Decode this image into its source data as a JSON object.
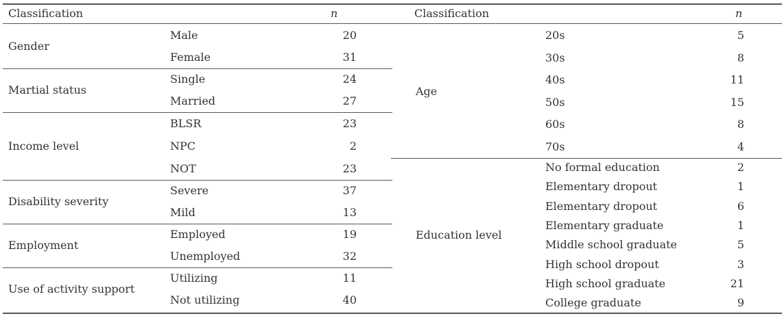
{
  "header": {
    "left_classification": "Classification",
    "left_n": "n",
    "right_classification": "Classification",
    "right_n": "n"
  },
  "left_groups": [
    {
      "label": "Gender",
      "rows": [
        {
          "label": "Male",
          "n": "20"
        },
        {
          "label": "Female",
          "n": "31"
        }
      ]
    },
    {
      "label": "Martial status",
      "rows": [
        {
          "label": "Single",
          "n": "24"
        },
        {
          "label": "Married",
          "n": "27"
        }
      ]
    },
    {
      "label": "Income level",
      "rows": [
        {
          "label": "BLSR",
          "n": "23"
        },
        {
          "label": "NPC",
          "n": "2"
        },
        {
          "label": "NOT",
          "n": "23"
        }
      ]
    },
    {
      "label": "Disability severity",
      "rows": [
        {
          "label": "Severe",
          "n": "37"
        },
        {
          "label": "Mild",
          "n": "13"
        }
      ]
    },
    {
      "label": "Employment",
      "rows": [
        {
          "label": "Employed",
          "n": "19"
        },
        {
          "label": "Unemployed",
          "n": "32"
        }
      ]
    },
    {
      "label": "Use of activity support",
      "rows": [
        {
          "label": "Utilizing",
          "n": "11"
        },
        {
          "label": "Not utilizing",
          "n": "40"
        }
      ]
    }
  ],
  "right_groups": [
    {
      "label": "Age",
      "rows": [
        {
          "label": "20s",
          "n": "5"
        },
        {
          "label": "30s",
          "n": "8"
        },
        {
          "label": "40s",
          "n": "11"
        },
        {
          "label": "50s",
          "n": "15"
        },
        {
          "label": "60s",
          "n": "8"
        },
        {
          "label": "70s",
          "n": "4"
        }
      ]
    },
    {
      "label": "Education level",
      "rows": [
        {
          "label": "No formal education",
          "n": "2"
        },
        {
          "label": "Elementary dropout",
          "n": "1"
        },
        {
          "label": "Elementary dropout",
          "n": "6"
        },
        {
          "label": "Elementary graduate",
          "n": "1"
        },
        {
          "label": "Middle school graduate",
          "n": "5"
        },
        {
          "label": "High school dropout",
          "n": "3"
        },
        {
          "label": "High school graduate",
          "n": "21"
        },
        {
          "label": "College graduate",
          "n": "9"
        }
      ]
    }
  ]
}
